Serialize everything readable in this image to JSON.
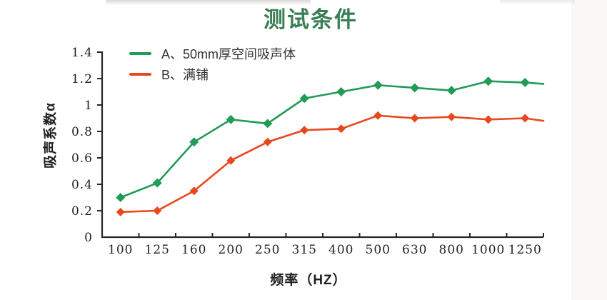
{
  "header": {
    "title": "测试条件"
  },
  "colors": {
    "title": "#3a7e55",
    "axis": "#2a2526",
    "tick_text": "#231f1f",
    "legend_text": "#333333",
    "series_a": "#229b56",
    "series_b": "#e8481e",
    "background": "#ffffff",
    "right_strip": "#faf8f6"
  },
  "chart_data": {
    "type": "line",
    "title": "测试条件",
    "xlabel": "频率（HZ）",
    "ylabel": "吸声系数α",
    "categories": [
      "100",
      "125",
      "160",
      "200",
      "250",
      "315",
      "400",
      "500",
      "630",
      "800",
      "1000",
      "1250"
    ],
    "ylim": [
      0,
      1.4
    ],
    "ytick_step": 0.2,
    "ytick_labels": [
      "0",
      "0.2",
      "0.4",
      "0.6",
      "0.8",
      "1",
      "1.2",
      "1.4"
    ],
    "grid": false,
    "marker": "diamond",
    "legend_position": "top-left-inside",
    "series": [
      {
        "name": "A、50mm厚空间吸声体",
        "color": "#229b56",
        "values": [
          0.3,
          0.41,
          0.72,
          0.89,
          0.86,
          1.05,
          1.1,
          1.15,
          1.13,
          1.11,
          1.18,
          1.17
        ],
        "edge_value": 1.16
      },
      {
        "name": "B、满铺",
        "color": "#e8481e",
        "values": [
          0.19,
          0.2,
          0.35,
          0.58,
          0.72,
          0.81,
          0.82,
          0.92,
          0.9,
          0.91,
          0.89,
          0.9
        ],
        "edge_value": 0.88
      }
    ]
  }
}
